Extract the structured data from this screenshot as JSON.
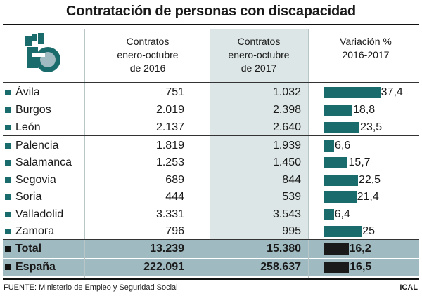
{
  "title": "Contratación de personas con discapacidad",
  "headers": {
    "col2016": [
      "Contratos",
      "enero-octubre",
      "de 2016"
    ],
    "col2017": [
      "Contratos",
      "enero-octubre",
      "de 2017"
    ],
    "variation": [
      "Variación %",
      "2016-2017"
    ]
  },
  "rows": [
    {
      "province": "Ávila",
      "c2016": "751",
      "c2017": "1.032",
      "pct_label": "37,4"
    },
    {
      "province": "Burgos",
      "c2016": "2.019",
      "c2017": "2.398",
      "pct_label": "18,8"
    },
    {
      "province": "León",
      "c2016": "2.137",
      "c2017": "2.640",
      "pct_label": "23,5"
    },
    {
      "province": "Palencia",
      "c2016": "1.819",
      "c2017": "1.939",
      "pct_label": "6,6"
    },
    {
      "province": "Salamanca",
      "c2016": "1.253",
      "c2017": "1.450",
      "pct_label": "15,7"
    },
    {
      "province": "Segovia",
      "c2016": "689",
      "c2017": "844",
      "pct_label": "22,5"
    },
    {
      "province": "Soria",
      "c2016": "444",
      "c2017": "539",
      "pct_label": "21,4"
    },
    {
      "province": "Valladolid",
      "c2016": "3.331",
      "c2017": "3.543",
      "pct_label": "6,4"
    },
    {
      "province": "Zamora",
      "c2016": "796",
      "c2017": "995",
      "pct_label": "25"
    },
    {
      "province": "Total",
      "c2016": "13.239",
      "c2017": "15.380",
      "pct_label": "16,2",
      "bold": true
    },
    {
      "province": "España",
      "c2016": "222.091",
      "c2017": "258.637",
      "pct_label": "16,5",
      "bold": true
    }
  ],
  "footer": {
    "source": "FUENTE: Ministerio de Empleo y Seguridad Social",
    "credit": "ICAL"
  },
  "colors": {
    "bar": "#1a6b6b",
    "bar_total": "#1a1a1a",
    "bullet": "#1a6b6b",
    "total_bg": "#9fbac0",
    "col2017_bg": "#dde6e6"
  },
  "chart_data": {
    "type": "bar",
    "categories": [
      "Ávila",
      "Burgos",
      "León",
      "Palencia",
      "Salamanca",
      "Segovia",
      "Soria",
      "Valladolid",
      "Zamora",
      "Total",
      "España"
    ],
    "series": [
      {
        "values": [
          37.4,
          18.8,
          23.5,
          6.6,
          15.7,
          22.5,
          21.4,
          6.4,
          25,
          16.2,
          16.5
        ]
      }
    ],
    "orientation": "horizontal"
  }
}
